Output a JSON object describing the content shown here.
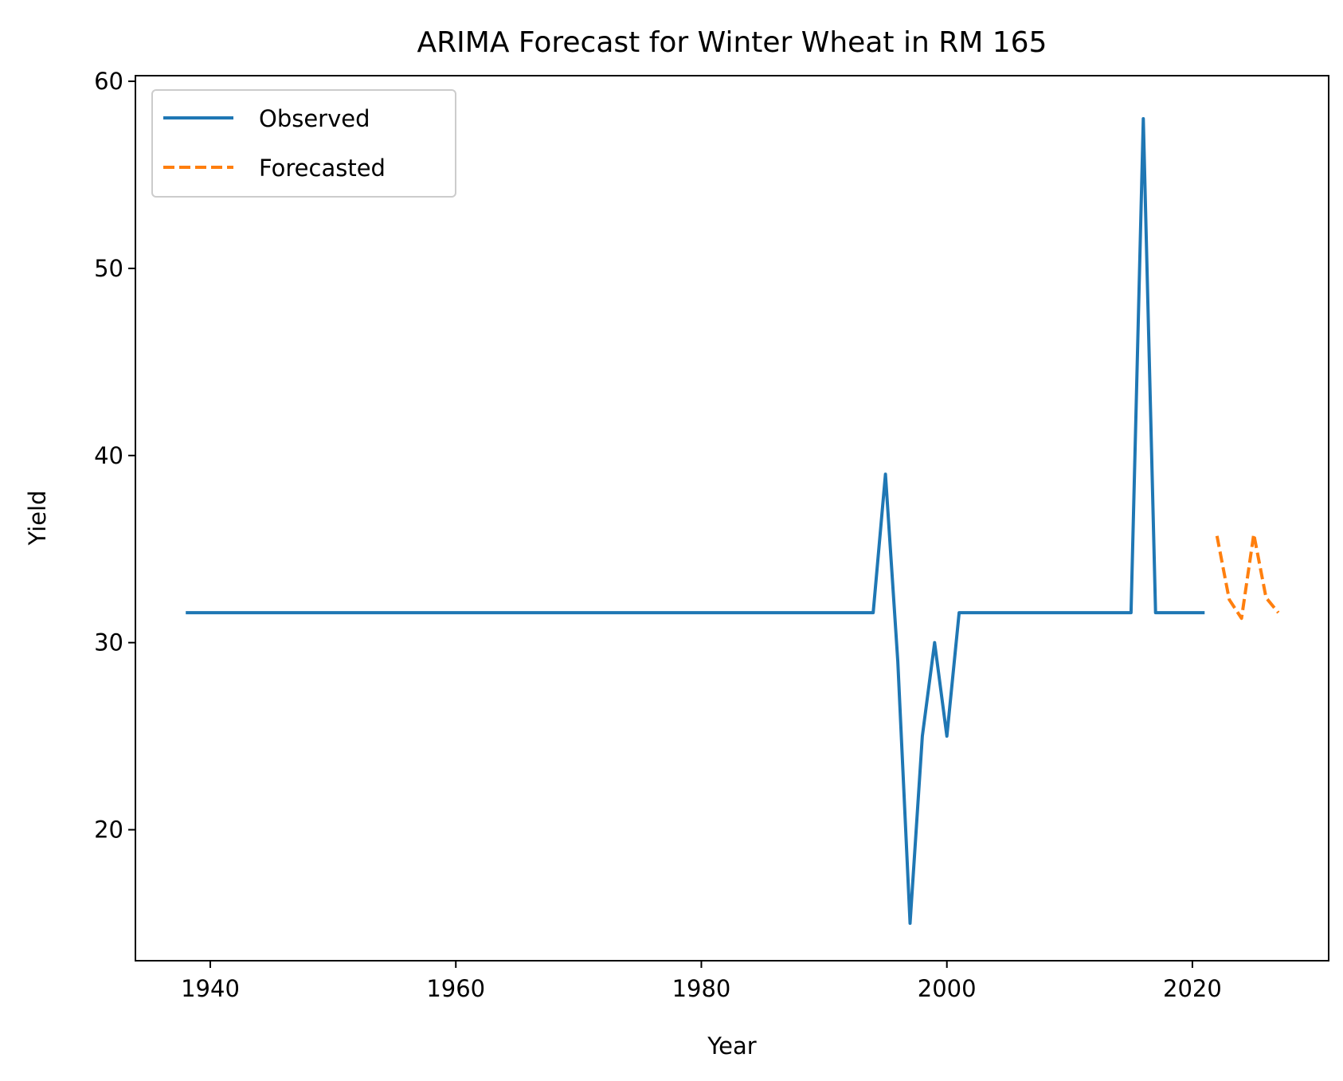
{
  "chart_data": {
    "type": "line",
    "title": "ARIMA Forecast for Winter Wheat in RM 165",
    "xlabel": "Year",
    "ylabel": "Yield",
    "xlim": [
      1933.9,
      2031.1
    ],
    "ylim": [
      13.0,
      60.3
    ],
    "xticks": [
      1940,
      1960,
      1980,
      2000,
      2020
    ],
    "yticks": [
      20,
      30,
      40,
      50,
      60
    ],
    "grid": false,
    "legend_position": "top-left",
    "series": [
      {
        "name": "Observed",
        "color": "#1f77b4",
        "style": "solid",
        "x": [
          1938,
          1994,
          1995,
          1996,
          1997,
          1998,
          1999,
          2000,
          2001,
          2015,
          2016,
          2017,
          2021
        ],
        "y": [
          31.6,
          31.6,
          39.0,
          29.0,
          15.0,
          25.0,
          30.0,
          25.0,
          31.6,
          31.6,
          58.0,
          31.6,
          31.6
        ]
      },
      {
        "name": "Forecasted",
        "color": "#ff7f0e",
        "style": "dashed",
        "x": [
          2022,
          2023,
          2024,
          2025,
          2026,
          2027
        ],
        "y": [
          35.7,
          32.3,
          31.3,
          35.8,
          32.4,
          31.6
        ]
      }
    ]
  }
}
